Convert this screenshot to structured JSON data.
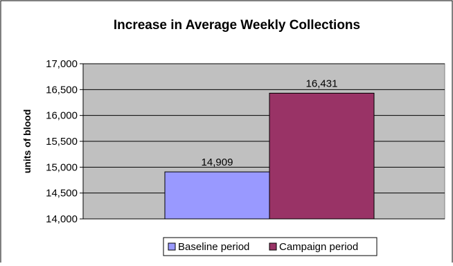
{
  "chart_data": {
    "type": "bar",
    "title": "Increase in Average Weekly Collections",
    "xlabel": "",
    "ylabel": "units of blood",
    "ylim": [
      14000,
      17000
    ],
    "yticks": [
      14000,
      14500,
      15000,
      15500,
      16000,
      16500,
      17000
    ],
    "ytick_labels": [
      "14,000",
      "14,500",
      "15,000",
      "15,500",
      "16,000",
      "16,500",
      "17,000"
    ],
    "grid": true,
    "legend_position": "bottom",
    "series": [
      {
        "name": "Baseline period",
        "values": [
          14909
        ],
        "label": "14,909",
        "color": "#9999ff"
      },
      {
        "name": "Campaign period",
        "values": [
          16431
        ],
        "label": "16,431",
        "color": "#993366"
      }
    ],
    "plot_background": "#c0c0c0"
  }
}
